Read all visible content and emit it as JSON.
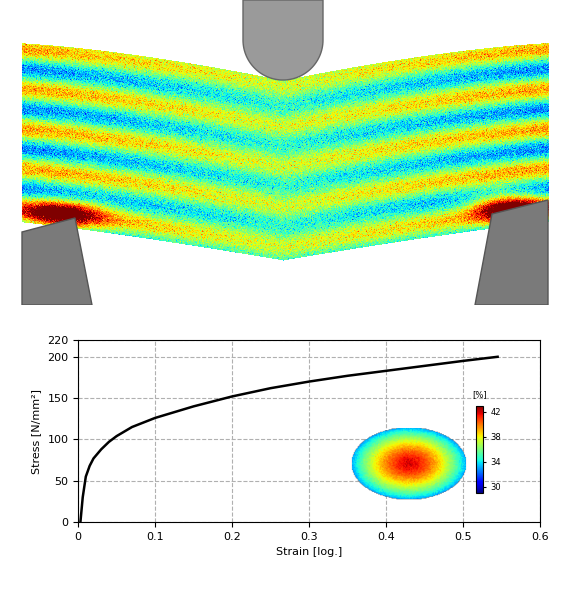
{
  "chart_data": {
    "type": "line",
    "xlabel": "Strain [log.]",
    "ylabel": "Stress [N/mm²]",
    "x": [
      0.003,
      0.006,
      0.01,
      0.015,
      0.02,
      0.03,
      0.04,
      0.05,
      0.07,
      0.1,
      0.15,
      0.2,
      0.25,
      0.3,
      0.35,
      0.4,
      0.45,
      0.5,
      0.545
    ],
    "values": [
      0,
      30,
      55,
      68,
      77,
      88,
      97,
      104,
      115,
      126,
      140,
      152,
      162,
      170,
      177,
      183,
      189,
      195,
      200
    ],
    "color": "#000000",
    "xlim": [
      0,
      0.6
    ],
    "xticks": [
      0,
      0.1,
      0.2,
      0.3,
      0.4,
      0.5,
      0.6
    ],
    "ylim": [
      0,
      220
    ],
    "yticks": [
      0,
      50,
      100,
      150,
      200,
      220
    ],
    "grid": true,
    "colorbar": {
      "label": "[%]",
      "range": [
        29,
        43
      ],
      "ticks": [
        30,
        34,
        38,
        42
      ]
    }
  }
}
